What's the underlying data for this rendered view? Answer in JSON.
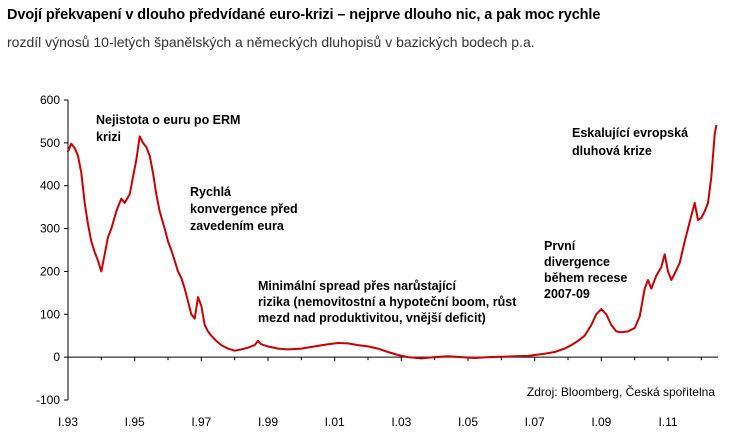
{
  "header": {
    "title": "Dvojí překvapení v dlouho předvídané euro-krizi – nejprve dlouho nic, a pak moc rychle",
    "subtitle": "rozdíl výnosů 10-letých španělských a německých dluhopisů v bazických bodech p.a."
  },
  "chart_data": {
    "type": "line",
    "title": "Dvojí překvapení v dlouho předvídané euro-krizi – nejprve dlouho nic, a pak moc rychle",
    "subtitle": "rozdíl výnosů 10-letých španělských a německých dluhopisů v bazických bodech p.a.",
    "xlabel": "",
    "ylabel": "",
    "ylim": [
      -100,
      600
    ],
    "xlim": [
      1993,
      2012.5
    ],
    "yticks": [
      -100,
      0,
      100,
      200,
      300,
      400,
      500,
      600
    ],
    "xticks": [
      {
        "value": 1993,
        "label": "I.93"
      },
      {
        "value": 1995,
        "label": "I.95"
      },
      {
        "value": 1997,
        "label": "I.97"
      },
      {
        "value": 1999,
        "label": "I.99"
      },
      {
        "value": 2001,
        "label": "I.01"
      },
      {
        "value": 2003,
        "label": "I.03"
      },
      {
        "value": 2005,
        "label": "I.05"
      },
      {
        "value": 2007,
        "label": "I.07"
      },
      {
        "value": 2009,
        "label": "I.09"
      },
      {
        "value": 2011,
        "label": "I.11"
      }
    ],
    "grid": false,
    "color": "#cc0000",
    "series": [
      {
        "points": [
          [
            1993.0,
            480
          ],
          [
            1993.1,
            498
          ],
          [
            1993.2,
            488
          ],
          [
            1993.3,
            470
          ],
          [
            1993.4,
            430
          ],
          [
            1993.5,
            360
          ],
          [
            1993.6,
            310
          ],
          [
            1993.7,
            270
          ],
          [
            1993.8,
            245
          ],
          [
            1993.9,
            225
          ],
          [
            1994.0,
            200
          ],
          [
            1994.1,
            240
          ],
          [
            1994.2,
            280
          ],
          [
            1994.3,
            300
          ],
          [
            1994.45,
            340
          ],
          [
            1994.6,
            370
          ],
          [
            1994.7,
            360
          ],
          [
            1994.85,
            380
          ],
          [
            1994.95,
            420
          ],
          [
            1995.05,
            460
          ],
          [
            1995.15,
            515
          ],
          [
            1995.25,
            500
          ],
          [
            1995.35,
            490
          ],
          [
            1995.45,
            470
          ],
          [
            1995.55,
            430
          ],
          [
            1995.65,
            380
          ],
          [
            1995.75,
            340
          ],
          [
            1995.9,
            300
          ],
          [
            1996.0,
            270
          ],
          [
            1996.1,
            250
          ],
          [
            1996.2,
            225
          ],
          [
            1996.3,
            200
          ],
          [
            1996.4,
            185
          ],
          [
            1996.5,
            160
          ],
          [
            1996.6,
            130
          ],
          [
            1996.7,
            100
          ],
          [
            1996.8,
            90
          ],
          [
            1996.9,
            140
          ],
          [
            1997.0,
            120
          ],
          [
            1997.1,
            75
          ],
          [
            1997.2,
            60
          ],
          [
            1997.3,
            50
          ],
          [
            1997.45,
            38
          ],
          [
            1997.6,
            28
          ],
          [
            1997.8,
            20
          ],
          [
            1998.0,
            15
          ],
          [
            1998.2,
            18
          ],
          [
            1998.4,
            22
          ],
          [
            1998.6,
            28
          ],
          [
            1998.7,
            38
          ],
          [
            1998.8,
            30
          ],
          [
            1999.0,
            25
          ],
          [
            1999.3,
            20
          ],
          [
            1999.6,
            18
          ],
          [
            2000.0,
            20
          ],
          [
            2000.4,
            25
          ],
          [
            2000.8,
            30
          ],
          [
            2001.1,
            33
          ],
          [
            2001.4,
            32
          ],
          [
            2001.7,
            28
          ],
          [
            2002.0,
            25
          ],
          [
            2002.3,
            20
          ],
          [
            2002.6,
            12
          ],
          [
            2002.9,
            5
          ],
          [
            2003.2,
            0
          ],
          [
            2003.6,
            -3
          ],
          [
            2004.0,
            0
          ],
          [
            2004.4,
            2
          ],
          [
            2004.8,
            0
          ],
          [
            2005.2,
            -2
          ],
          [
            2005.6,
            0
          ],
          [
            2006.0,
            1
          ],
          [
            2006.4,
            2
          ],
          [
            2006.8,
            3
          ],
          [
            2007.0,
            5
          ],
          [
            2007.3,
            8
          ],
          [
            2007.6,
            12
          ],
          [
            2007.9,
            20
          ],
          [
            2008.1,
            28
          ],
          [
            2008.3,
            38
          ],
          [
            2008.5,
            50
          ],
          [
            2008.7,
            75
          ],
          [
            2008.85,
            100
          ],
          [
            2009.0,
            112
          ],
          [
            2009.15,
            100
          ],
          [
            2009.3,
            75
          ],
          [
            2009.45,
            60
          ],
          [
            2009.6,
            58
          ],
          [
            2009.8,
            60
          ],
          [
            2010.0,
            68
          ],
          [
            2010.15,
            95
          ],
          [
            2010.3,
            160
          ],
          [
            2010.4,
            180
          ],
          [
            2010.5,
            160
          ],
          [
            2010.65,
            190
          ],
          [
            2010.8,
            210
          ],
          [
            2010.9,
            240
          ],
          [
            2011.0,
            200
          ],
          [
            2011.1,
            180
          ],
          [
            2011.2,
            195
          ],
          [
            2011.35,
            220
          ],
          [
            2011.5,
            270
          ],
          [
            2011.6,
            300
          ],
          [
            2011.7,
            330
          ],
          [
            2011.8,
            360
          ],
          [
            2011.9,
            320
          ],
          [
            2012.0,
            325
          ],
          [
            2012.1,
            340
          ],
          [
            2012.2,
            360
          ],
          [
            2012.3,
            420
          ],
          [
            2012.4,
            520
          ],
          [
            2012.45,
            540
          ]
        ]
      }
    ],
    "annotations": [
      {
        "lines": [
          "Nejistota o euru po ERM",
          "krizi"
        ]
      },
      {
        "lines": [
          "Rychlá",
          "konvergence před",
          "zavedením eura"
        ]
      },
      {
        "lines": [
          "Minimální spread přes narůstající",
          "rizika (nemovitostní a hypoteční boom, růst",
          "mezd nad produktivitou, vnější deficit)"
        ]
      },
      {
        "lines": [
          "První",
          "divergence",
          "během recese",
          "2007-09"
        ]
      },
      {
        "lines": [
          "Eskalující evropská",
          "dluhová krize"
        ]
      }
    ],
    "source": "Zdroj: Bloomberg, Česká spořitelna"
  }
}
